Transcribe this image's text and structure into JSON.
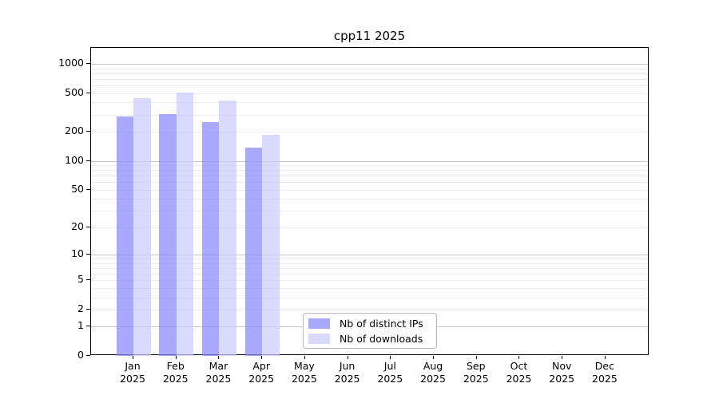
{
  "chart_data": {
    "type": "bar",
    "title": "cpp11 2025",
    "months": [
      "Jan",
      "Feb",
      "Mar",
      "Apr",
      "May",
      "Jun",
      "Jul",
      "Aug",
      "Sep",
      "Oct",
      "Nov",
      "Dec"
    ],
    "year": "2025",
    "y_scale": "log10(1+x)",
    "y_ticks": [
      0,
      1,
      2,
      5,
      10,
      20,
      50,
      100,
      200,
      500,
      1000
    ],
    "ylim": [
      0,
      1460
    ],
    "grid": true,
    "legend_position": "bottom-center-inside",
    "series": [
      {
        "name": "Nb of distinct IPs",
        "color": "#8888ff",
        "values": [
          285,
          305,
          250,
          136,
          null,
          null,
          null,
          null,
          null,
          null,
          null,
          null
        ]
      },
      {
        "name": "Nb of downloads",
        "color": "#ccccff",
        "values": [
          445,
          505,
          420,
          185,
          null,
          null,
          null,
          null,
          null,
          null,
          null,
          null
        ]
      }
    ]
  }
}
